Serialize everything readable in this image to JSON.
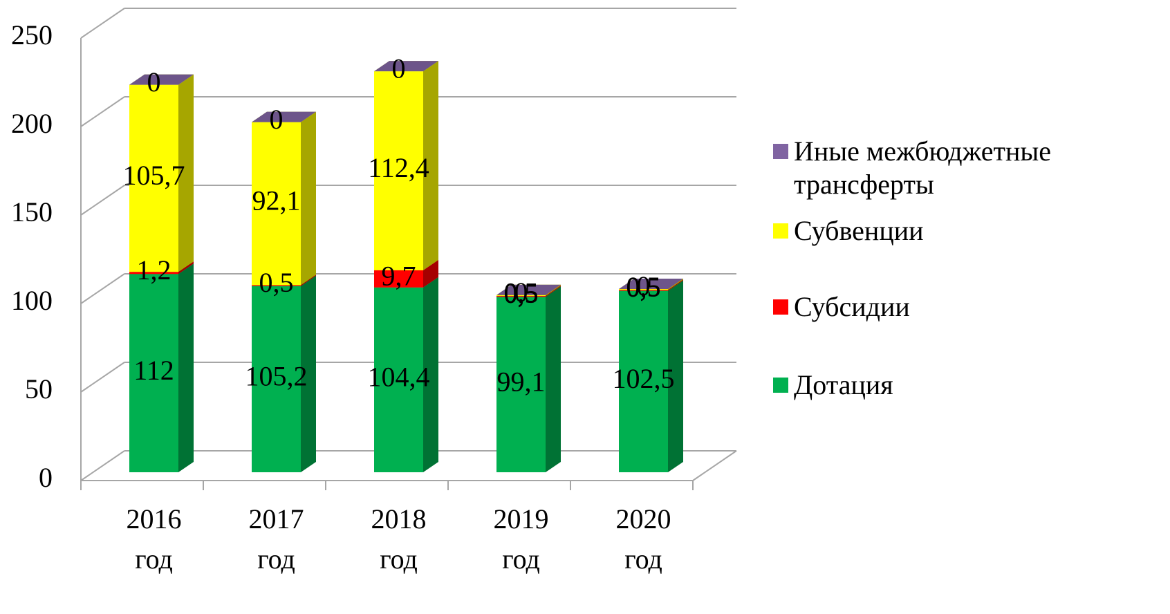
{
  "chart_data": {
    "type": "bar3d_stacked",
    "categories": [
      "2016 год",
      "2017 год",
      "2018 год",
      "2019 год",
      "2020 год"
    ],
    "series": [
      {
        "name": "Дотация",
        "color": "#00b050",
        "values": [
          112,
          105.2,
          104.4,
          99.1,
          102.5
        ],
        "value_labels": [
          "112",
          "105,2",
          "104,4",
          "99,1",
          "102,5"
        ]
      },
      {
        "name": "Субсидии",
        "color": "#ff0000",
        "values": [
          1.2,
          0.5,
          9.7,
          0.5,
          0.5
        ],
        "value_labels": [
          "1,2",
          "0,5",
          "9,7",
          "0,5",
          "0,5"
        ]
      },
      {
        "name": "Субвенции",
        "color": "#ffff00",
        "values": [
          105.7,
          92.1,
          112.4,
          0.5,
          0.5
        ],
        "value_labels": [
          "105,7",
          "92,1",
          "112,4",
          "0,5",
          "0,5"
        ]
      },
      {
        "name": "Иные межбюджетные трансферты",
        "color": "#8064a2",
        "values": [
          0,
          0,
          0,
          0,
          0
        ],
        "value_labels": [
          "0",
          "0",
          "0",
          "0",
          "0"
        ]
      }
    ],
    "ylim": [
      0,
      250
    ],
    "yticks": [
      0,
      50,
      100,
      150,
      200,
      250
    ],
    "grid": true,
    "legend": "right"
  }
}
